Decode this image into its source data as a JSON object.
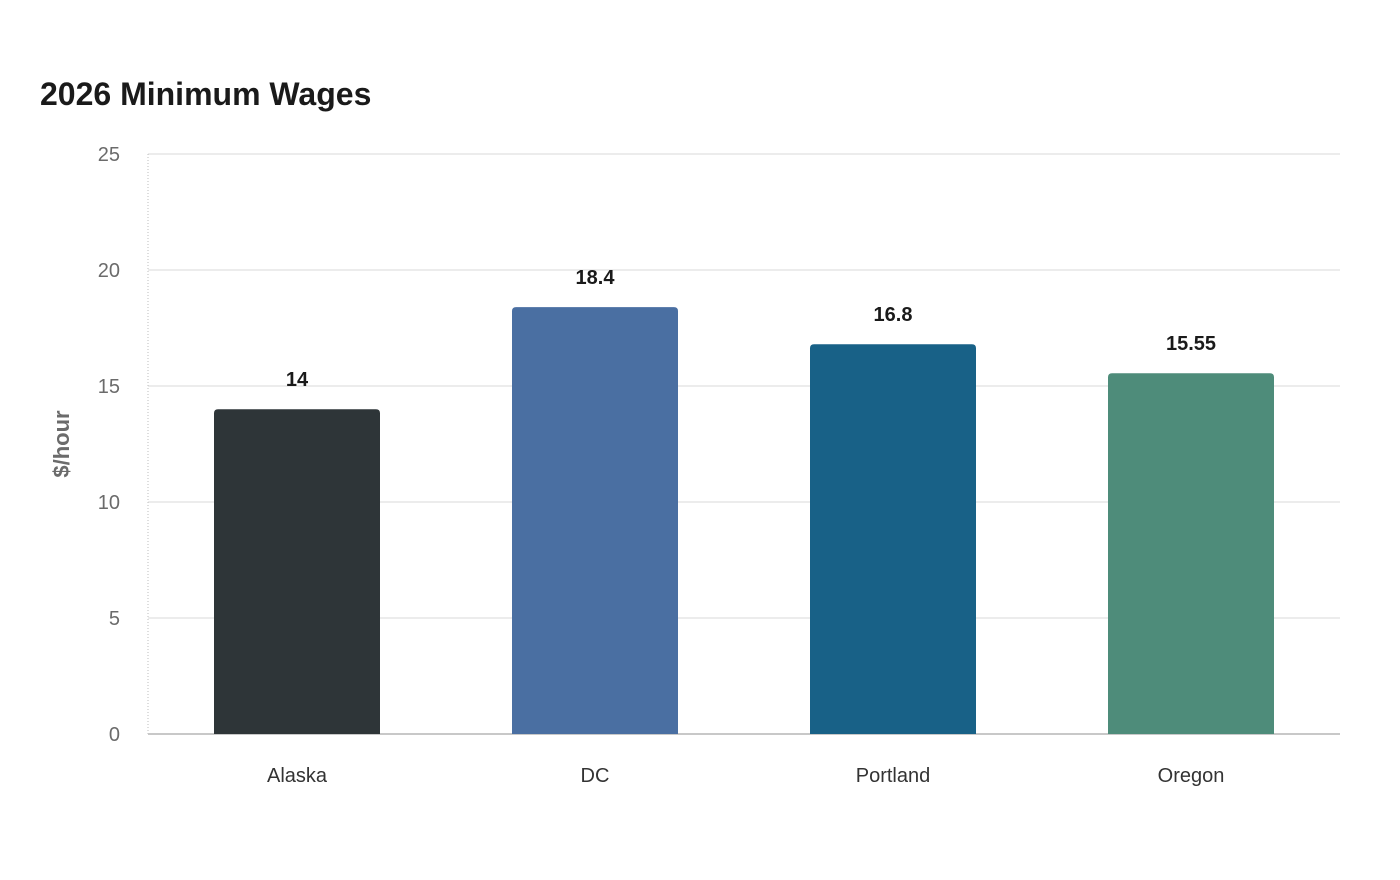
{
  "chart_data": {
    "type": "bar",
    "title": "2026 Minimum Wages",
    "xlabel": "",
    "ylabel": "$/hour",
    "categories": [
      "Alaska",
      "DC",
      "Portland",
      "Oregon"
    ],
    "values": [
      14,
      18.4,
      16.8,
      15.55
    ],
    "value_labels": [
      "14",
      "18.4",
      "16.8",
      "15.55"
    ],
    "colors": [
      "#2e3538",
      "#4a6fa2",
      "#186187",
      "#4e8c7a"
    ],
    "ylim": [
      0,
      25
    ],
    "yticks": [
      0,
      5,
      10,
      15,
      20,
      25
    ],
    "grid": true,
    "legend": "none"
  }
}
